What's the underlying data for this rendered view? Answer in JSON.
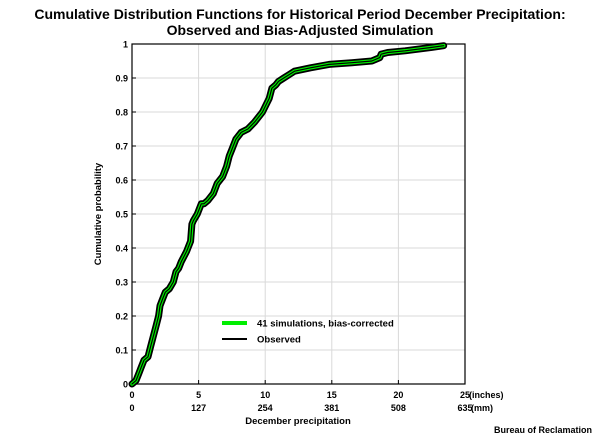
{
  "title_line1": "Cumulative Distribution Functions for Historical Period December Precipitation:",
  "title_line2": "Observed and Bias-Adjusted Simulation",
  "credit": "Bureau of Reclamation",
  "colors": {
    "sim": "#00ee00",
    "obs": "#000000",
    "grid": "#d9d9d9"
  },
  "chart_data": {
    "type": "line",
    "title": "Cumulative Distribution Functions for Historical Period December Precipitation: Observed and Bias-Adjusted Simulation",
    "xlabel": "December precipitation",
    "ylabel": "Cumulative probability",
    "xlim": [
      0,
      25
    ],
    "ylim": [
      0,
      1
    ],
    "grid": true,
    "legend_position": "lower-center",
    "x_ticks_primary": [
      "0",
      "5",
      "10",
      "15",
      "20",
      "25"
    ],
    "x_unit_primary": "(inches)",
    "x_ticks_secondary": [
      "0",
      "127",
      "254",
      "381",
      "508",
      "635"
    ],
    "x_unit_secondary": "(mm)",
    "y_ticks": [
      "0",
      "0.1",
      "0.2",
      "0.3",
      "0.4",
      "0.5",
      "0.6",
      "0.7",
      "0.8",
      "0.9",
      "1"
    ],
    "series": [
      {
        "name": "41 simulations, bias-corrected",
        "x": [
          0.0,
          0.3,
          0.5,
          0.7,
          0.9,
          1.2,
          1.4,
          1.6,
          1.8,
          2.0,
          2.1,
          2.3,
          2.5,
          2.8,
          3.1,
          3.3,
          3.5,
          3.7,
          4.1,
          4.4,
          4.5,
          4.6,
          4.9,
          5.2,
          5.4,
          5.7,
          6.1,
          6.4,
          6.8,
          7.1,
          7.3,
          7.5,
          7.8,
          8.2,
          8.7,
          9.2,
          9.8,
          10.3,
          10.5,
          10.8,
          11.0,
          11.4,
          11.8,
          12.2,
          13.4,
          14.8,
          16.5,
          18.0,
          18.6,
          18.7,
          19.2,
          20.5,
          22.5,
          23.4
        ],
        "y": [
          0.0,
          0.01,
          0.03,
          0.05,
          0.07,
          0.08,
          0.11,
          0.14,
          0.17,
          0.2,
          0.23,
          0.25,
          0.27,
          0.28,
          0.3,
          0.33,
          0.34,
          0.36,
          0.39,
          0.42,
          0.47,
          0.48,
          0.5,
          0.53,
          0.53,
          0.54,
          0.56,
          0.59,
          0.61,
          0.64,
          0.67,
          0.69,
          0.72,
          0.74,
          0.75,
          0.77,
          0.8,
          0.84,
          0.87,
          0.88,
          0.89,
          0.9,
          0.91,
          0.92,
          0.93,
          0.94,
          0.945,
          0.95,
          0.96,
          0.97,
          0.975,
          0.98,
          0.99,
          0.995
        ]
      },
      {
        "name": "Observed",
        "x": [
          0.0,
          0.3,
          0.5,
          0.7,
          0.9,
          1.2,
          1.4,
          1.6,
          1.8,
          2.0,
          2.1,
          2.3,
          2.5,
          2.8,
          3.1,
          3.3,
          3.5,
          3.7,
          4.1,
          4.4,
          4.5,
          4.6,
          4.9,
          5.2,
          5.4,
          5.7,
          6.1,
          6.4,
          6.8,
          7.1,
          7.3,
          7.5,
          7.8,
          8.2,
          8.7,
          9.2,
          9.8,
          10.3,
          10.5,
          10.8,
          11.0,
          11.4,
          11.8,
          12.2,
          13.4,
          14.8,
          16.5,
          18.0,
          18.6,
          18.7,
          19.2,
          20.5,
          22.5,
          23.4
        ],
        "y": [
          0.0,
          0.01,
          0.03,
          0.05,
          0.07,
          0.08,
          0.11,
          0.14,
          0.17,
          0.2,
          0.23,
          0.25,
          0.27,
          0.28,
          0.3,
          0.33,
          0.34,
          0.36,
          0.39,
          0.42,
          0.47,
          0.48,
          0.5,
          0.53,
          0.53,
          0.54,
          0.56,
          0.59,
          0.61,
          0.64,
          0.67,
          0.69,
          0.72,
          0.74,
          0.75,
          0.77,
          0.8,
          0.84,
          0.87,
          0.88,
          0.89,
          0.9,
          0.91,
          0.92,
          0.93,
          0.94,
          0.945,
          0.95,
          0.96,
          0.97,
          0.975,
          0.98,
          0.99,
          0.995
        ]
      }
    ]
  }
}
